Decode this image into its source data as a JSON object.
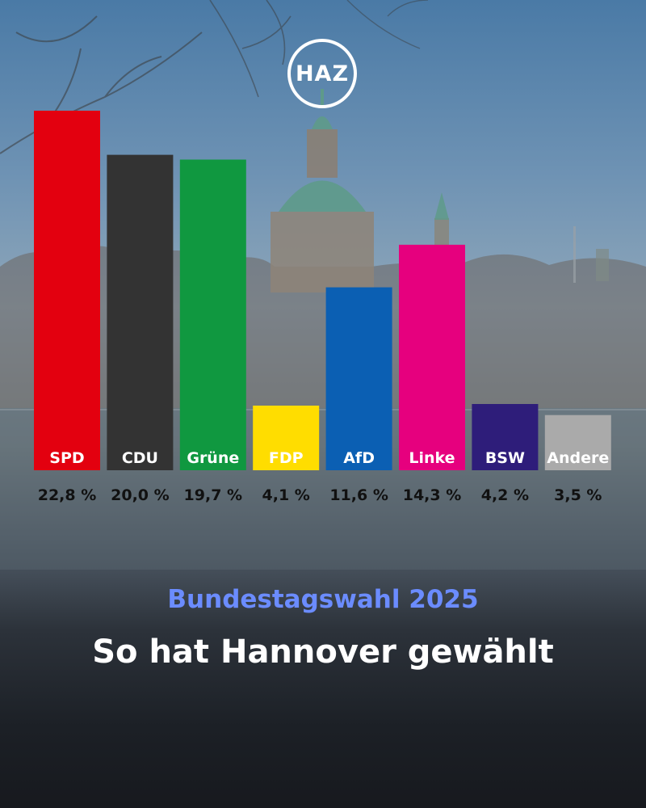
{
  "brand": {
    "logo_text": "HAZ"
  },
  "headline": {
    "subtitle": "Bundestagswahl 2025",
    "title": "So hat Hannover gewählt"
  },
  "chart_data": {
    "type": "bar",
    "categories": [
      "SPD",
      "CDU",
      "Grüne",
      "FDP",
      "AfD",
      "Linke",
      "BSW",
      "Andere"
    ],
    "values": [
      22.8,
      20.0,
      19.7,
      4.1,
      11.6,
      14.3,
      4.2,
      3.5
    ],
    "value_labels": [
      "22,8 %",
      "20,0 %",
      "19,7 %",
      "4,1 %",
      "11,6 %",
      "14,3 %",
      "4,2 %",
      "3,5 %"
    ],
    "colors": [
      "#e3000f",
      "#333333",
      "#109840",
      "#ffdd00",
      "#0b5fb3",
      "#e6007e",
      "#2e1d7a",
      "#aaaaaa"
    ],
    "label_colors": [
      "#ffffff",
      "#ffffff",
      "#ffffff",
      "#ffffff",
      "#ffffff",
      "#ffffff",
      "#ffffff",
      "#ffffff"
    ],
    "ylim": [
      0,
      25
    ],
    "grid": false
  }
}
